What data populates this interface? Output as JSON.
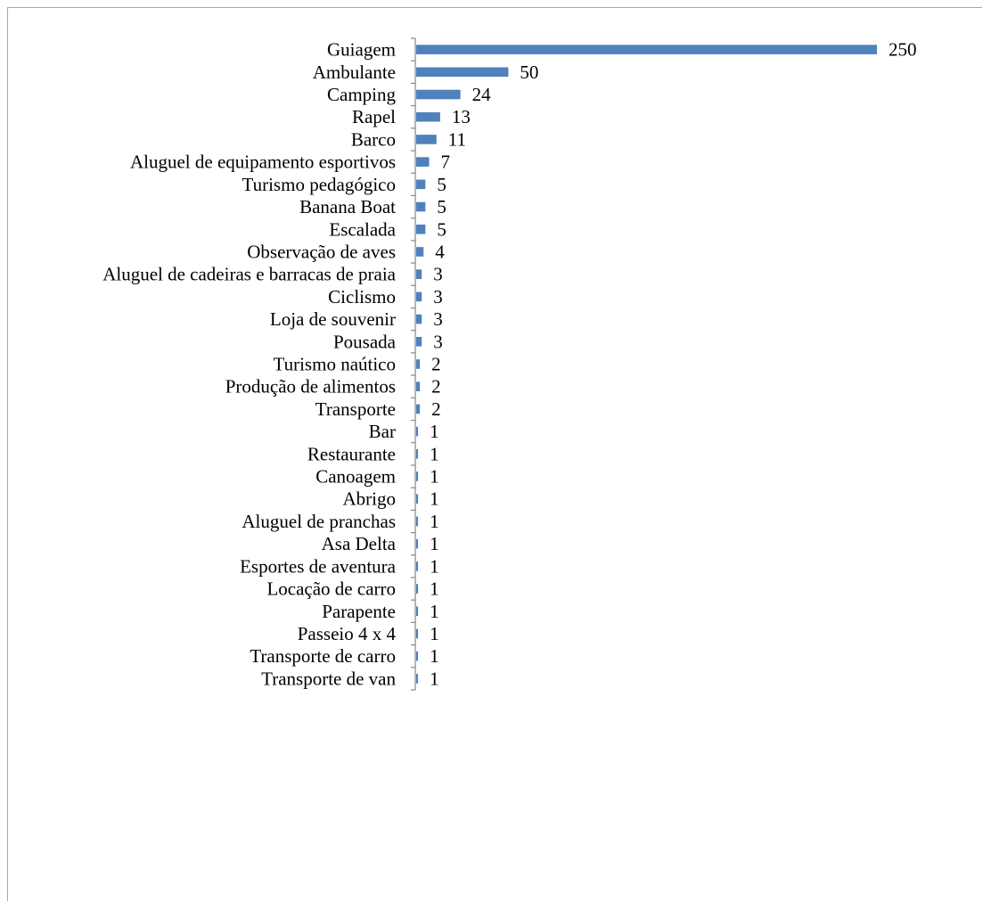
{
  "chart_data": {
    "type": "bar",
    "orientation": "horizontal",
    "title": "",
    "xlabel": "",
    "ylabel": "",
    "categories": [
      "Guiagem",
      "Ambulante",
      "Camping",
      "Rapel",
      "Barco",
      "Aluguel de equipamento esportivos",
      "Turismo pedagógico",
      "Banana Boat",
      "Escalada",
      "Observação de aves",
      "Aluguel de cadeiras e barracas de praia",
      "Ciclismo",
      "Loja de souvenir",
      "Pousada",
      "Turismo naútico",
      "Produção de alimentos",
      "Transporte",
      "Bar",
      "Restaurante",
      "Canoagem",
      "Abrigo",
      "Aluguel de pranchas",
      "Asa Delta",
      "Esportes de aventura",
      "Locação de carro",
      "Parapente",
      "Passeio 4 x 4",
      "Transporte de carro",
      "Transporte de van"
    ],
    "values": [
      250,
      50,
      24,
      13,
      11,
      7,
      5,
      5,
      5,
      4,
      3,
      3,
      3,
      3,
      2,
      2,
      2,
      1,
      1,
      1,
      1,
      1,
      1,
      1,
      1,
      1,
      1,
      1,
      1
    ],
    "xlim": [
      0,
      250
    ],
    "grid": false,
    "legend": "none",
    "data_labels": true,
    "colors": {
      "bar": "#4f81bd",
      "axis": "#868686",
      "text": "#000000",
      "frame": "#a6a6a6"
    }
  }
}
